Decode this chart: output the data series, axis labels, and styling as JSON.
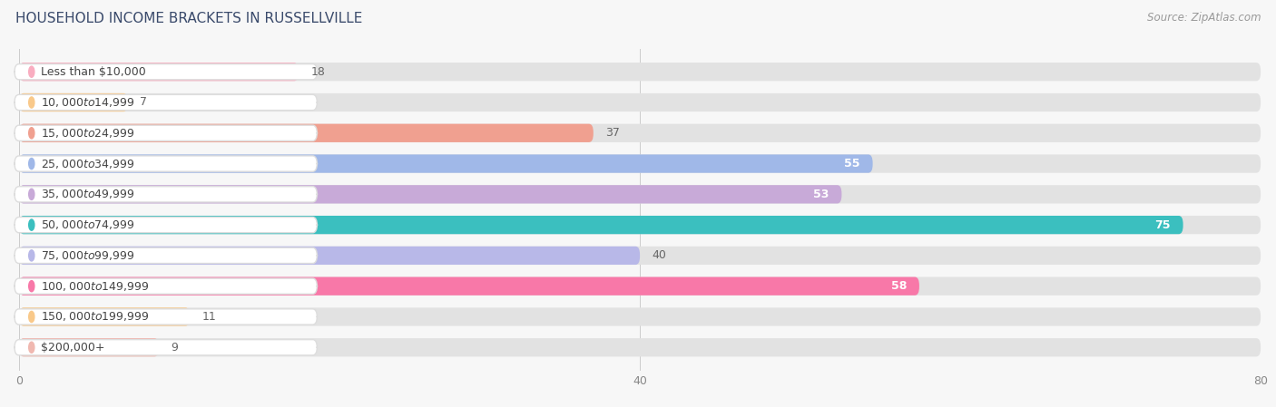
{
  "title": "HOUSEHOLD INCOME BRACKETS IN RUSSELLVILLE",
  "source": "Source: ZipAtlas.com",
  "categories": [
    "Less than $10,000",
    "$10,000 to $14,999",
    "$15,000 to $24,999",
    "$25,000 to $34,999",
    "$35,000 to $49,999",
    "$50,000 to $74,999",
    "$75,000 to $99,999",
    "$100,000 to $149,999",
    "$150,000 to $199,999",
    "$200,000+"
  ],
  "values": [
    18,
    7,
    37,
    55,
    53,
    75,
    40,
    58,
    11,
    9
  ],
  "bar_colors": [
    "#f9adc0",
    "#f9c98a",
    "#f0a090",
    "#a0b8e8",
    "#c8aad8",
    "#3bbfbf",
    "#b8b8e8",
    "#f878a8",
    "#f9c98a",
    "#f0b8b0"
  ],
  "xlim": [
    0,
    80
  ],
  "xticks": [
    0,
    40,
    80
  ],
  "background_color": "#f7f7f7",
  "bar_bg_color": "#e2e2e2",
  "title_fontsize": 11,
  "source_fontsize": 8.5,
  "label_fontsize": 9,
  "value_fontsize": 9,
  "title_color": "#3a4a6b",
  "source_color": "#999999",
  "label_bg_color": "#ffffff",
  "value_inside_color": "#ffffff",
  "value_outside_color": "#666666",
  "value_inside_threshold": 45
}
